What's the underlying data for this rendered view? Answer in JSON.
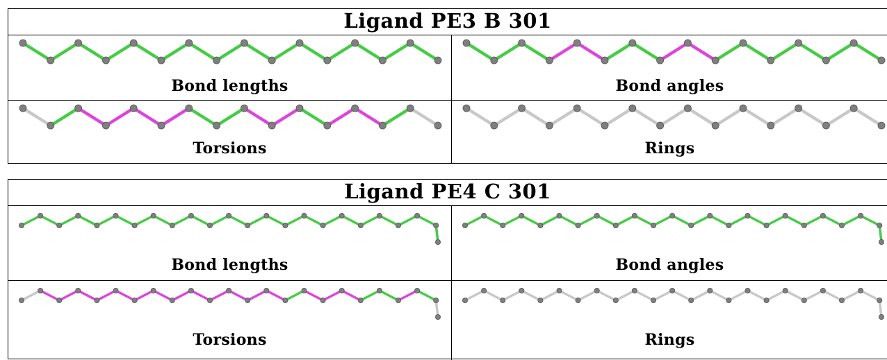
{
  "colors": {
    "pass": "#44cc44",
    "fail": "#dd44dd",
    "none": "#c8c8c8",
    "atom": "#7f7f7f"
  },
  "ligands": [
    {
      "title": "Ligand PE3 B 301",
      "chain": "pe3",
      "panels": [
        {
          "label": "Bond lengths",
          "bond_status": [
            "g",
            "g",
            "g",
            "g",
            "g",
            "g",
            "g",
            "g",
            "g",
            "g",
            "g",
            "g",
            "g",
            "g",
            "g"
          ]
        },
        {
          "label": "Bond angles",
          "bond_status": [
            "g",
            "g",
            "g",
            "p",
            "p",
            "g",
            "g",
            "p",
            "p",
            "g",
            "g",
            "g",
            "g",
            "g",
            "g"
          ]
        },
        {
          "label": "Torsions",
          "bond_status": [
            "n",
            "g",
            "p",
            "p",
            "p",
            "p",
            "g",
            "g",
            "p",
            "p",
            "g",
            "p",
            "p",
            "g",
            "n"
          ]
        },
        {
          "label": "Rings",
          "bond_status": [
            "n",
            "n",
            "n",
            "n",
            "n",
            "n",
            "n",
            "n",
            "n",
            "n",
            "n",
            "n",
            "n",
            "n",
            "n"
          ]
        }
      ]
    },
    {
      "title": "Ligand PE4 C 301",
      "chain": "pe4",
      "panels": [
        {
          "label": "Bond lengths",
          "bond_status": [
            "g",
            "g",
            "g",
            "g",
            "g",
            "g",
            "g",
            "g",
            "g",
            "g",
            "g",
            "g",
            "g",
            "g",
            "g",
            "g",
            "g",
            "g",
            "g",
            "g",
            "g",
            "g",
            "g"
          ]
        },
        {
          "label": "Bond angles",
          "bond_status": [
            "g",
            "g",
            "g",
            "g",
            "g",
            "g",
            "g",
            "g",
            "g",
            "g",
            "g",
            "g",
            "g",
            "g",
            "g",
            "g",
            "g",
            "g",
            "g",
            "g",
            "g",
            "g",
            "g"
          ]
        },
        {
          "label": "Torsions",
          "bond_status": [
            "n",
            "p",
            "p",
            "p",
            "p",
            "p",
            "p",
            "p",
            "p",
            "p",
            "p",
            "p",
            "p",
            "p",
            "g",
            "p",
            "p",
            "p",
            "g",
            "g",
            "p",
            "g",
            "n"
          ]
        },
        {
          "label": "Rings",
          "bond_status": [
            "n",
            "n",
            "n",
            "n",
            "n",
            "n",
            "n",
            "n",
            "n",
            "n",
            "n",
            "n",
            "n",
            "n",
            "n",
            "n",
            "n",
            "n",
            "n",
            "n",
            "n",
            "n",
            "n"
          ]
        }
      ]
    }
  ]
}
